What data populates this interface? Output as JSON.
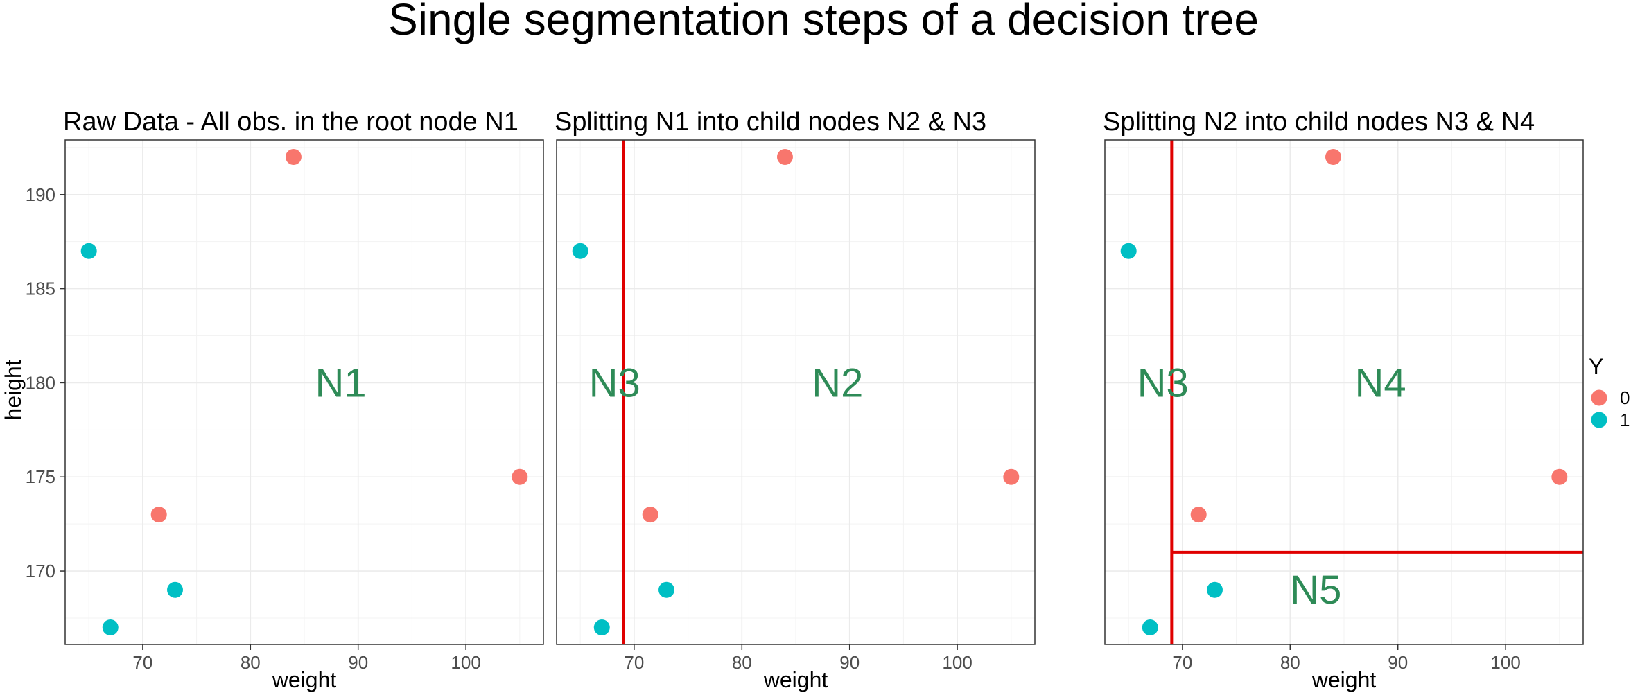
{
  "chart_data": {
    "type": "scatter",
    "title": "Single segmentation steps of a decision tree",
    "xlabel": "weight",
    "ylabel": "height",
    "xlim": [
      62.8,
      107.2
    ],
    "ylim": [
      166.1,
      192.9
    ],
    "x_major_ticks": [
      70,
      80,
      90,
      100
    ],
    "x_minor_ticks": [
      65,
      75,
      85,
      95,
      105
    ],
    "y_major_ticks": [
      170,
      175,
      180,
      185,
      190
    ],
    "y_minor_ticks": [
      167.5,
      172.5,
      177.5,
      182.5,
      187.5,
      192.5
    ],
    "grid": true,
    "legend": {
      "title": "Y",
      "placement": "right",
      "entries": [
        {
          "label": "0",
          "color": "#F8766D"
        },
        {
          "label": "1",
          "color": "#00BFC4"
        }
      ]
    },
    "colors": {
      "0": "#F8766D",
      "1": "#00BFC4"
    },
    "points": [
      {
        "x": 84,
        "y": 192,
        "class": "0"
      },
      {
        "x": 65,
        "y": 187,
        "class": "1"
      },
      {
        "x": 105,
        "y": 175,
        "class": "0"
      },
      {
        "x": 71.5,
        "y": 173,
        "class": "0"
      },
      {
        "x": 73,
        "y": 169,
        "class": "1"
      },
      {
        "x": 67,
        "y": 167,
        "class": "1"
      }
    ],
    "split_color": "#E00000",
    "node_label_color": "#2E8B57",
    "panels": [
      {
        "title": "Raw Data - All obs. in the root node N1",
        "splits": [],
        "node_labels": [
          {
            "text": "N1",
            "x": 86,
            "y": 180
          }
        ]
      },
      {
        "title": "Splitting N1 into child nodes N2 & N3",
        "splits": [
          {
            "orientation": "vertical",
            "value": 69
          }
        ],
        "node_labels": [
          {
            "text": "N3",
            "x": 65.8,
            "y": 180
          },
          {
            "text": "N2",
            "x": 86.5,
            "y": 180
          }
        ]
      },
      {
        "title": "Splitting N2 into child nodes N3 & N4",
        "splits": [
          {
            "orientation": "vertical",
            "value": 69
          },
          {
            "orientation": "horizontal",
            "value": 171,
            "from": 69
          }
        ],
        "node_labels": [
          {
            "text": "N3",
            "x": 65.8,
            "y": 180
          },
          {
            "text": "N4",
            "x": 86,
            "y": 180
          },
          {
            "text": "N5",
            "x": 80,
            "y": 169
          }
        ]
      }
    ]
  }
}
